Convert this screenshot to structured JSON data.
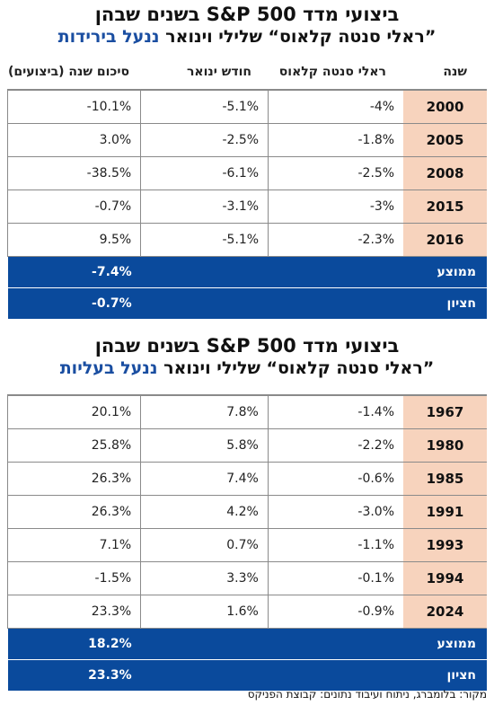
{
  "chart_data": [
    {
      "type": "table",
      "title_line1": "ביצועי מדד S&P 500 בשנים שבהן",
      "title_line2_prefix": "”ראלי סנטה קלאוס“ שלילי וינואר",
      "title_line2_accent": "ננעל בירידות",
      "columns": [
        "שנה",
        "ראלי סנטה קלאוס",
        "חודש ינואר",
        "סיכום שנה (ביצועים)"
      ],
      "rows": [
        {
          "year": "2000",
          "santa": "-4%",
          "january": "-5.1%",
          "year_total": "-10.1%"
        },
        {
          "year": "2005",
          "santa": "-1.8%",
          "january": "-2.5%",
          "year_total": "3.0%"
        },
        {
          "year": "2008",
          "santa": "-2.5%",
          "january": "-6.1%",
          "year_total": "-38.5%"
        },
        {
          "year": "2015",
          "santa": "-3%",
          "january": "-3.1%",
          "year_total": "-0.7%"
        },
        {
          "year": "2016",
          "santa": "-2.3%",
          "january": "-5.1%",
          "year_total": "9.5%"
        }
      ],
      "average_label": "ממוצע",
      "average_value": "-7.4%",
      "median_label": "חציון",
      "median_value": "-0.7%"
    },
    {
      "type": "table",
      "title_line1": "ביצועי מדד S&P 500 בשנים שבהן",
      "title_line2_prefix": "”ראלי סנטה קלאוס“ שלילי וינואר",
      "title_line2_accent": "ננעל בעליות",
      "rows": [
        {
          "year": "1967",
          "santa": "-1.4%",
          "january": "7.8%",
          "year_total": "20.1%"
        },
        {
          "year": "1980",
          "santa": "-2.2%",
          "january": "5.8%",
          "year_total": "25.8%"
        },
        {
          "year": "1985",
          "santa": "-0.6%",
          "january": "7.4%",
          "year_total": "26.3%"
        },
        {
          "year": "1991",
          "santa": "-3.0%",
          "january": "4.2%",
          "year_total": "26.3%"
        },
        {
          "year": "1993",
          "santa": "-1.1%",
          "january": "0.7%",
          "year_total": "7.1%"
        },
        {
          "year": "1994",
          "santa": "-0.1%",
          "january": "3.3%",
          "year_total": "-1.5%"
        },
        {
          "year": "2024",
          "santa": "-0.9%",
          "january": "1.6%",
          "year_total": "23.3%"
        }
      ],
      "average_label": "ממוצע",
      "average_value": "18.2%",
      "median_label": "חציון",
      "median_value": "23.3%"
    }
  ],
  "colors": {
    "accent": "#1a4ea1",
    "summary_bg": "#0a4a9c",
    "year_bg": "#f7d3bd"
  },
  "source": "מקור: בלומברג, ניתוח ועיבוד נתונים: קבוצת הפניקס"
}
